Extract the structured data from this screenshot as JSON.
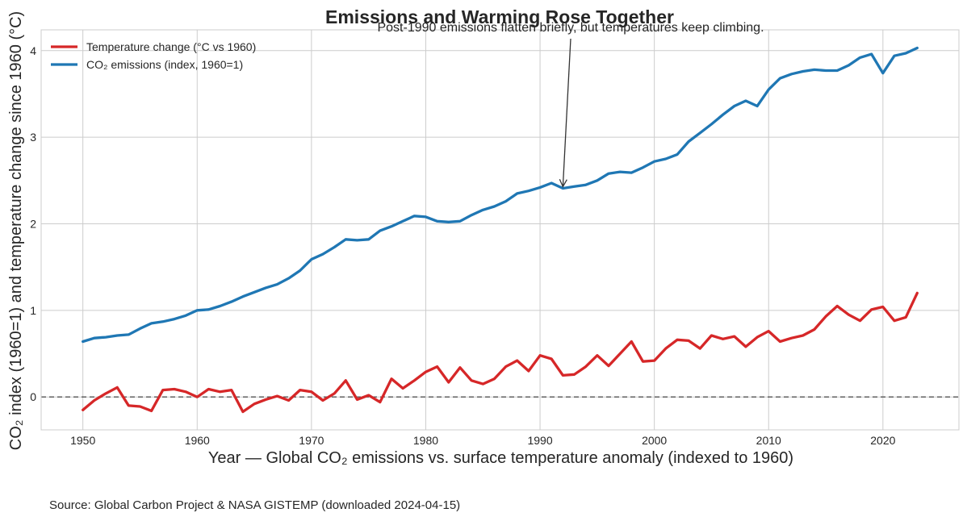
{
  "chart_data": {
    "type": "line",
    "title": "Emissions and Warming Rose Together",
    "xlabel": "Year — Global CO₂ emissions vs. surface temperature anomaly (indexed to 1960)",
    "ylabel": "CO₂ index (1960=1) and temperature change since 1960 (°C)",
    "xlim": [
      1946.35,
      1926.65
    ],
    "ylim": [
      -0.38,
      4.24
    ],
    "xticks": [
      1950,
      1960,
      1970,
      1980,
      1990,
      2000,
      2010,
      2020
    ],
    "yticks": [
      0,
      1,
      2,
      3,
      4
    ],
    "grid": true,
    "legend_position": "upper-left",
    "reference_line": {
      "y": 0,
      "style": "dashed",
      "color": "#555555"
    },
    "annotation": {
      "text": "Post-1990 emissions flatten briefly, but temperatures keep climbing.",
      "x": 1992,
      "y": 2.41
    },
    "x": [
      1950,
      1951,
      1952,
      1953,
      1954,
      1955,
      1956,
      1957,
      1958,
      1959,
      1960,
      1961,
      1962,
      1963,
      1964,
      1965,
      1966,
      1967,
      1968,
      1969,
      1970,
      1971,
      1972,
      1973,
      1974,
      1975,
      1976,
      1977,
      1978,
      1979,
      1980,
      1981,
      1982,
      1983,
      1984,
      1985,
      1986,
      1987,
      1988,
      1989,
      1990,
      1991,
      1992,
      1993,
      1994,
      1995,
      1996,
      1997,
      1998,
      1999,
      2000,
      2001,
      2002,
      2003,
      2004,
      2005,
      2006,
      2007,
      2008,
      2009,
      2010,
      2011,
      2012,
      2013,
      2014,
      2015,
      2016,
      2017,
      2018,
      2019,
      2020,
      2021,
      2022,
      2023
    ],
    "series": [
      {
        "name": "Temperature change (°C vs 1960)",
        "color": "#d62728",
        "values": [
          -0.15,
          -0.04,
          0.04,
          0.11,
          -0.1,
          -0.11,
          -0.16,
          0.08,
          0.09,
          0.06,
          0.0,
          0.09,
          0.06,
          0.08,
          -0.17,
          -0.08,
          -0.03,
          0.01,
          -0.04,
          0.08,
          0.06,
          -0.04,
          0.04,
          0.19,
          -0.03,
          0.02,
          -0.06,
          0.21,
          0.1,
          0.19,
          0.29,
          0.35,
          0.17,
          0.34,
          0.19,
          0.15,
          0.21,
          0.35,
          0.42,
          0.3,
          0.48,
          0.44,
          0.25,
          0.26,
          0.35,
          0.48,
          0.36,
          0.5,
          0.64,
          0.41,
          0.42,
          0.56,
          0.66,
          0.65,
          0.56,
          0.71,
          0.67,
          0.7,
          0.58,
          0.69,
          0.76,
          0.64,
          0.68,
          0.71,
          0.78,
          0.93,
          1.05,
          0.95,
          0.88,
          1.01,
          1.04,
          0.88,
          0.92,
          1.2
        ]
      },
      {
        "name": "CO₂ emissions (index, 1960=1)",
        "color": "#1f77b4",
        "values": [
          0.64,
          0.68,
          0.69,
          0.71,
          0.72,
          0.79,
          0.85,
          0.87,
          0.9,
          0.94,
          1.0,
          1.01,
          1.05,
          1.1,
          1.16,
          1.21,
          1.26,
          1.3,
          1.37,
          1.46,
          1.59,
          1.65,
          1.73,
          1.82,
          1.81,
          1.82,
          1.92,
          1.97,
          2.03,
          2.09,
          2.08,
          2.03,
          2.02,
          2.03,
          2.1,
          2.16,
          2.2,
          2.26,
          2.35,
          2.38,
          2.42,
          2.47,
          2.41,
          2.43,
          2.45,
          2.5,
          2.58,
          2.6,
          2.59,
          2.65,
          2.72,
          2.75,
          2.8,
          2.95,
          3.05,
          3.15,
          3.26,
          3.36,
          3.42,
          3.36,
          3.55,
          3.68,
          3.73,
          3.76,
          3.78,
          3.77,
          3.77,
          3.83,
          3.92,
          3.96,
          3.74,
          3.94,
          3.97,
          4.03
        ]
      }
    ]
  },
  "footer": {
    "source": "Source: Global Carbon Project & NASA GISTEMP (downloaded 2024-04-15)"
  }
}
